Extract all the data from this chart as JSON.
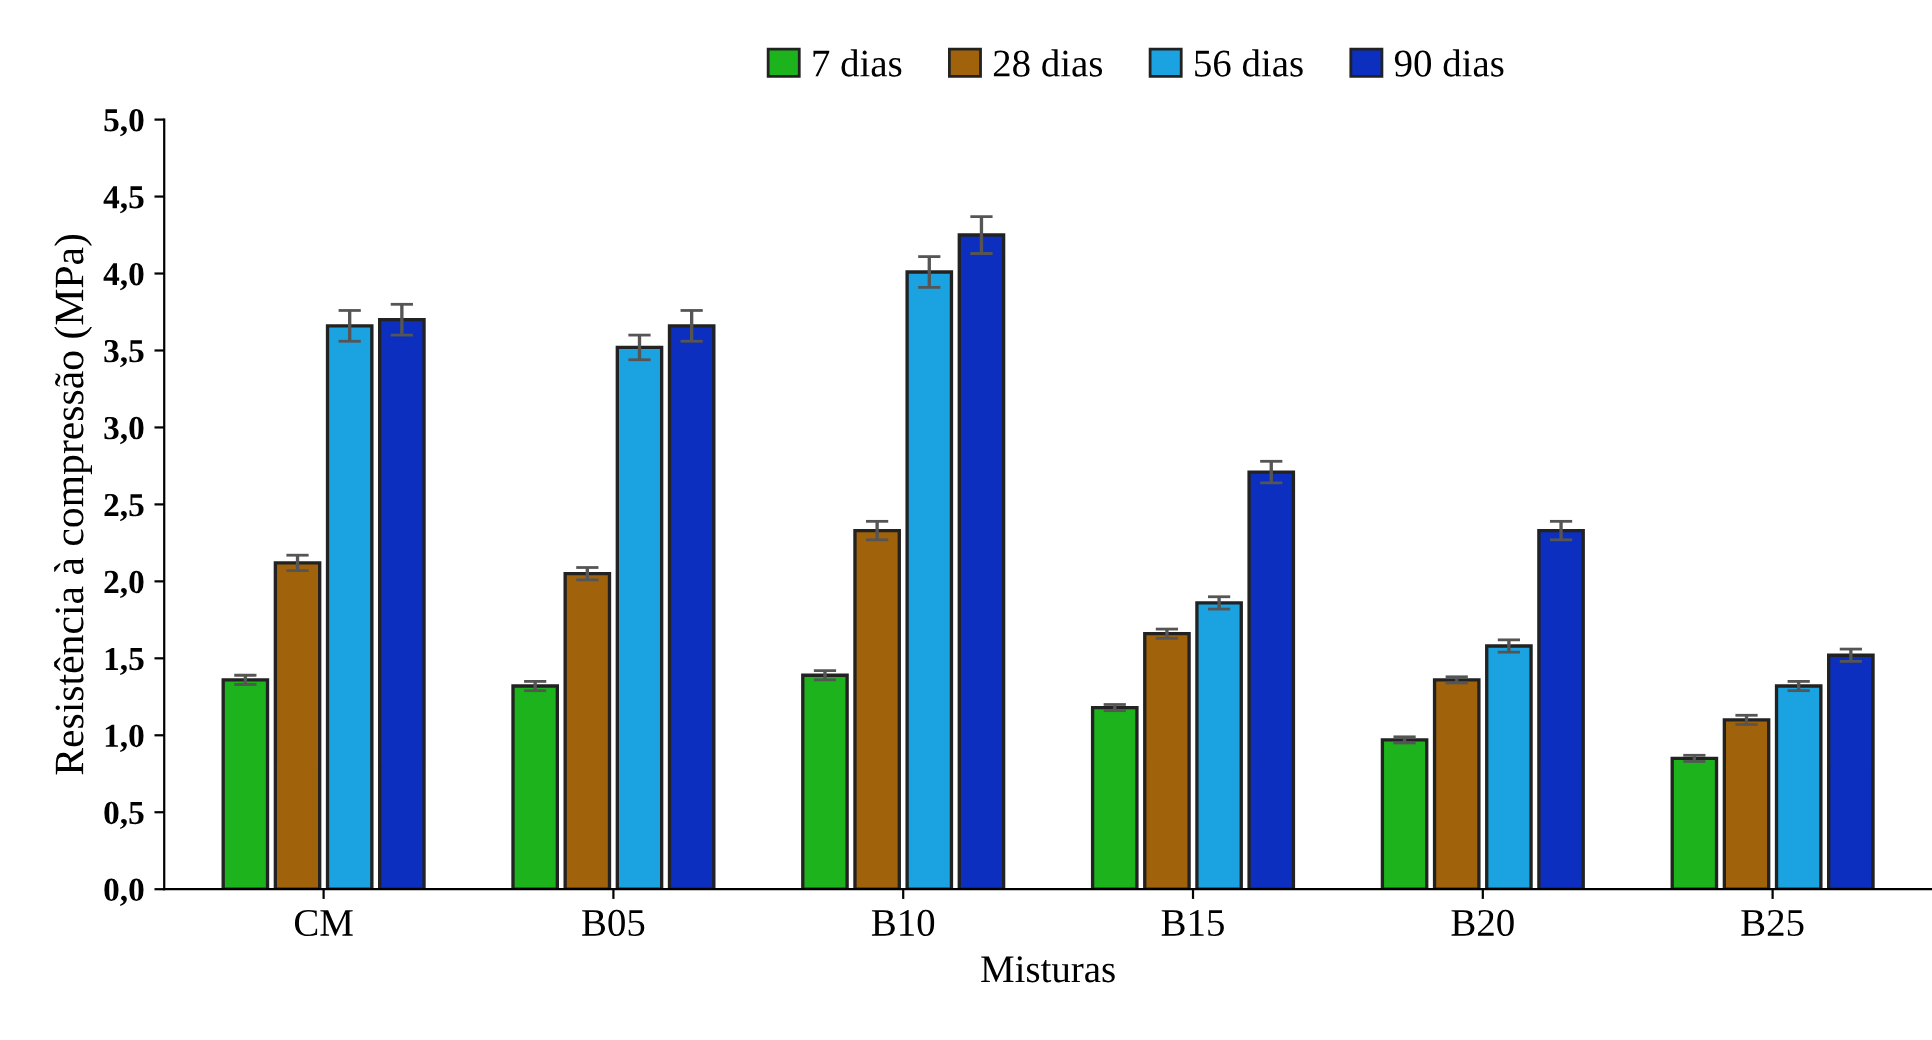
{
  "chart_data": {
    "type": "bar",
    "xlabel": "Misturas",
    "ylabel": "Resistência à compressão (MPa)",
    "categories": [
      "CM",
      "B05",
      "B10",
      "B15",
      "B20",
      "B25"
    ],
    "series": [
      {
        "name": "7 dias",
        "color": "#1db31d",
        "values": [
          1.36,
          1.32,
          1.39,
          1.18,
          0.97,
          0.85
        ],
        "errors": [
          0.03,
          0.03,
          0.03,
          0.02,
          0.02,
          0.02
        ]
      },
      {
        "name": "28 dias",
        "color": "#a0620a",
        "values": [
          2.12,
          2.05,
          2.33,
          1.66,
          1.36,
          1.1
        ],
        "errors": [
          0.05,
          0.04,
          0.06,
          0.03,
          0.02,
          0.03
        ]
      },
      {
        "name": "56 dias",
        "color": "#1aa3e0",
        "values": [
          3.66,
          3.52,
          4.01,
          1.86,
          1.58,
          1.32
        ],
        "errors": [
          0.1,
          0.08,
          0.1,
          0.04,
          0.04,
          0.03
        ]
      },
      {
        "name": "90 dias",
        "color": "#0d2fbf",
        "values": [
          3.7,
          3.66,
          4.25,
          2.71,
          2.33,
          1.52
        ],
        "errors": [
          0.1,
          0.1,
          0.12,
          0.07,
          0.06,
          0.04
        ]
      }
    ],
    "ylim": [
      0,
      5
    ],
    "yticks": [
      {
        "value": 0,
        "label": "0,0"
      },
      {
        "value": 0.5,
        "label": "0,5"
      },
      {
        "value": 1,
        "label": "1,0"
      },
      {
        "value": 1.5,
        "label": "1,5"
      },
      {
        "value": 2,
        "label": "2,0"
      },
      {
        "value": 2.5,
        "label": "2,5"
      },
      {
        "value": 3,
        "label": "3,0"
      },
      {
        "value": 3.5,
        "label": "3,5"
      },
      {
        "value": 4,
        "label": "4,0"
      },
      {
        "value": 4.5,
        "label": "4,5"
      },
      {
        "value": 5,
        "label": "5,0"
      }
    ],
    "legend": "top",
    "grid": false
  }
}
